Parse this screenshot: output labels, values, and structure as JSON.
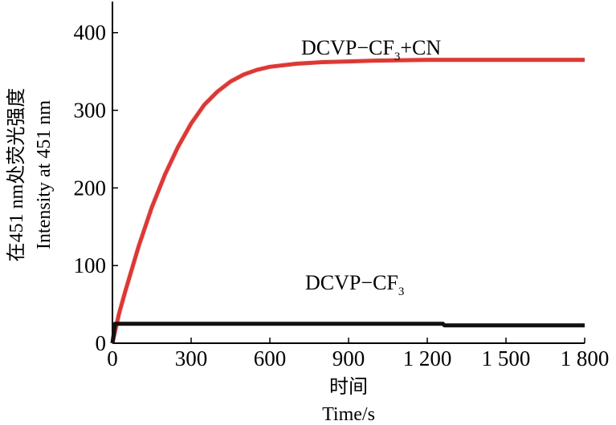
{
  "chart_data": {
    "type": "line",
    "xlabel_cn": "时间",
    "xlabel": "Time/s",
    "ylabel_cn": "在451 nm处荧光强度",
    "ylabel": "Intensity at 451 nm",
    "xlim": [
      0,
      1800
    ],
    "ylim": [
      0,
      440
    ],
    "x_ticks": [
      0,
      300,
      600,
      900,
      1200,
      1500,
      1800
    ],
    "x_tick_labels": [
      "0",
      "300",
      "600",
      "900",
      "1 200",
      "1 500",
      "1 800"
    ],
    "y_ticks": [
      0,
      100,
      200,
      300,
      400
    ],
    "y_tick_labels": [
      "0",
      "100",
      "200",
      "300",
      "400"
    ],
    "grid": false,
    "series": [
      {
        "name": "DCVP−CF3+CN",
        "label_main": "DCVP−CF",
        "label_sub": "3",
        "label_tail": "+CN",
        "color": "#e8332f",
        "x": [
          0,
          25,
          50,
          100,
          150,
          200,
          250,
          300,
          350,
          400,
          450,
          500,
          550,
          600,
          700,
          800,
          900,
          1000,
          1200,
          1400,
          1600,
          1800
        ],
        "y": [
          0,
          38,
          68,
          125,
          175,
          217,
          253,
          283,
          307,
          324,
          337,
          346,
          352,
          356,
          360,
          362,
          363,
          364,
          365,
          365,
          365,
          365
        ]
      },
      {
        "name": "DCVP−CF3",
        "label_main": "DCVP−CF",
        "label_sub": "3",
        "label_tail": "",
        "color": "#111111",
        "x": [
          0,
          10,
          300,
          600,
          900,
          1200,
          1260,
          1265,
          1500,
          1800
        ],
        "y": [
          0,
          25,
          25,
          25,
          25,
          25,
          25,
          23,
          23,
          23
        ]
      }
    ]
  }
}
